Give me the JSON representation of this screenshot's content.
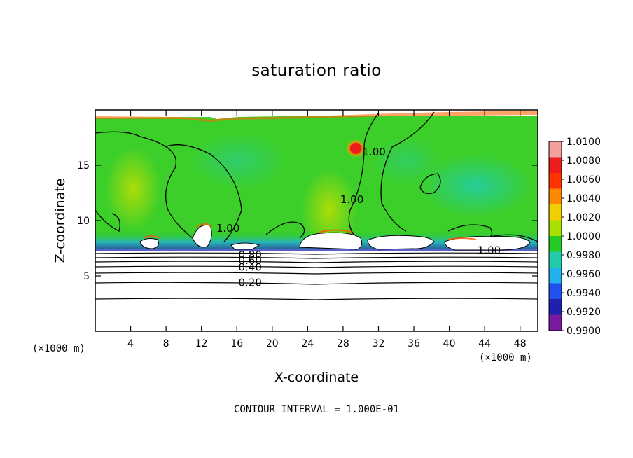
{
  "chart_data": {
    "type": "heatmap",
    "title": "saturation ratio",
    "xlabel": "X-coordinate",
    "ylabel": "Z-coordinate",
    "x_unit": "(×1000 m)",
    "z_unit": "(×1000 m)",
    "xlim": [
      0,
      50
    ],
    "ylim": [
      0,
      20
    ],
    "x_ticks": [
      4,
      8,
      12,
      16,
      20,
      24,
      28,
      32,
      36,
      40,
      44,
      48
    ],
    "y_ticks": [
      5,
      10,
      15
    ],
    "footnote": "CONTOUR INTERVAL = 1.000E-01",
    "colorbar": {
      "levels": [
        "1.0100",
        "1.0080",
        "1.0060",
        "1.0040",
        "1.0020",
        "1.0000",
        "0.9980",
        "0.9960",
        "0.9940",
        "0.9920",
        "0.9900"
      ],
      "colors": [
        "#f4a0a0",
        "#ee1c1c",
        "#ff3300",
        "#ff8800",
        "#f0d000",
        "#a8e000",
        "#22cc22",
        "#22ccaa",
        "#22b0ee",
        "#2050ee",
        "#2020b0",
        "#7a1aa0"
      ]
    },
    "contour_labels": [
      {
        "text": "1.00",
        "x": 31.5,
        "z": 16.2
      },
      {
        "text": "1.00",
        "x": 29.0,
        "z": 11.9
      },
      {
        "text": "1.00",
        "x": 15.0,
        "z": 9.3
      },
      {
        "text": "1.00",
        "x": 44.5,
        "z": 7.3
      },
      {
        "text": "0.80",
        "x": 17.5,
        "z": 6.9
      },
      {
        "text": "0.60",
        "x": 17.5,
        "z": 6.4
      },
      {
        "text": "0.40",
        "x": 17.5,
        "z": 5.8
      },
      {
        "text": "0.20",
        "x": 17.5,
        "z": 4.4
      }
    ],
    "contour_levels_below_clouds": [
      {
        "level": 0.2,
        "z": 4.4
      },
      {
        "level": 0.4,
        "z": 5.8
      },
      {
        "level": 0.6,
        "z": 6.4
      },
      {
        "level": 0.8,
        "z": 6.8
      }
    ]
  }
}
